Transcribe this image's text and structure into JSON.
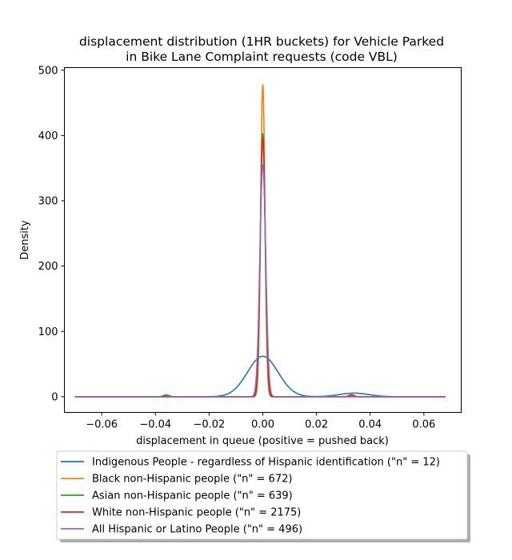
{
  "chart_data": {
    "type": "line",
    "title_lines": [
      "displacement distribution (1HR buckets) for Vehicle Parked",
      "in Bike Lane Complaint requests (code VBL)"
    ],
    "xlabel": "displacement in queue (positive = pushed back)",
    "ylabel": "Density",
    "xlim": [
      -0.0739,
      0.0739
    ],
    "ylim": [
      -24,
      504
    ],
    "xticks": [
      -0.06,
      -0.04,
      -0.02,
      0.0,
      0.02,
      0.04,
      0.06
    ],
    "xtick_labels": [
      "−0.06",
      "−0.04",
      "−0.02",
      "0.00",
      "0.02",
      "0.04",
      "0.06"
    ],
    "yticks": [
      0,
      100,
      200,
      300,
      400,
      500
    ],
    "ytick_labels": [
      "0",
      "100",
      "200",
      "300",
      "400",
      "500"
    ],
    "x_range": [
      -0.07,
      0.068
    ],
    "grid": false,
    "legend_position": "below",
    "series": [
      {
        "name": "Indigenous People - regardless of Hispanic identification (\"n\" = 12)",
        "color": "#1f77b4",
        "components": [
          {
            "mu": 0.0,
            "sigma": 0.0057,
            "height": 62
          },
          {
            "mu": 0.034,
            "sigma": 0.0055,
            "height": 5.5
          }
        ]
      },
      {
        "name": "Black non-Hispanic people (\"n\" = 672)",
        "color": "#ff7f0e",
        "components": [
          {
            "mu": 0.0,
            "sigma": 0.0008,
            "height": 478
          },
          {
            "mu": -0.036,
            "sigma": 0.0009,
            "height": 1.5
          }
        ]
      },
      {
        "name": "Asian non-Hispanic people (\"n\" = 639)",
        "color": "#2ca02c",
        "components": [
          {
            "mu": 0.0,
            "sigma": 0.0009,
            "height": 403
          },
          {
            "mu": 0.033,
            "sigma": 0.0009,
            "height": 2
          }
        ]
      },
      {
        "name": "White non-Hispanic people (\"n\" = 2175)",
        "color": "#d62728",
        "components": [
          {
            "mu": 0.0,
            "sigma": 0.00095,
            "height": 396
          },
          {
            "mu": 0.033,
            "sigma": 0.001,
            "height": 3
          },
          {
            "mu": -0.036,
            "sigma": 0.001,
            "height": 2
          }
        ]
      },
      {
        "name": "All Hispanic or Latino People (\"n\" = 496)",
        "color": "#9467bd",
        "components": [
          {
            "mu": 0.0,
            "sigma": 0.0011,
            "height": 355
          },
          {
            "mu": -0.036,
            "sigma": 0.0011,
            "height": 3
          }
        ]
      }
    ]
  }
}
